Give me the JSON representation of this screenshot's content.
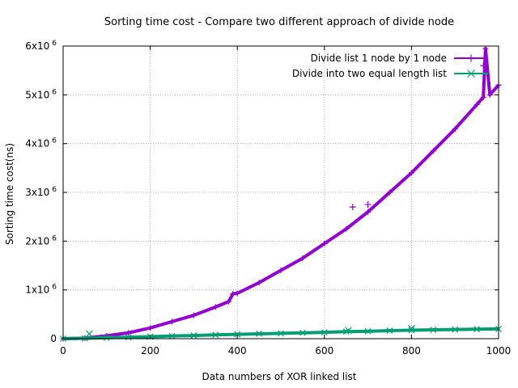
{
  "chart_data": {
    "type": "scatter",
    "title": "Sorting time cost - Compare two different approach of divide node",
    "xlabel": "Data numbers of XOR linked list",
    "ylabel": "Sorting time cost(ns)",
    "xlim": [
      0,
      1000
    ],
    "ylim": [
      0,
      6000000
    ],
    "xticks": [
      0,
      200,
      400,
      600,
      800,
      1000
    ],
    "xtick_labels": [
      "0",
      "200",
      "400",
      "600",
      "800",
      "1000"
    ],
    "yticks": [
      0,
      1000000,
      2000000,
      3000000,
      4000000,
      5000000,
      6000000
    ],
    "ytick_labels": [
      {
        "base": "0",
        "exp": ""
      },
      {
        "base": "1x10",
        "exp": "6"
      },
      {
        "base": "2x10",
        "exp": "6"
      },
      {
        "base": "3x10",
        "exp": "6"
      },
      {
        "base": "4x10",
        "exp": "6"
      },
      {
        "base": "5x10",
        "exp": "6"
      },
      {
        "base": "6x10",
        "exp": "6"
      }
    ],
    "grid": true,
    "legend_position": "top-right",
    "series": [
      {
        "name": "Divide list 1 node by 1 node",
        "color": "#9400d3",
        "marker": "plus",
        "x": [
          0,
          50,
          100,
          150,
          200,
          250,
          300,
          350,
          380,
          390,
          400,
          450,
          500,
          550,
          600,
          650,
          700,
          750,
          800,
          850,
          900,
          950,
          965,
          970,
          980,
          1000
        ],
        "y": [
          0,
          12000,
          60000,
          120000,
          220000,
          350000,
          480000,
          650000,
          760000,
          920000,
          930000,
          1150000,
          1400000,
          1650000,
          1950000,
          2250000,
          2600000,
          3000000,
          3400000,
          3850000,
          4300000,
          4800000,
          4950000,
          5950000,
          5000000,
          5200000
        ],
        "outliers": [
          [
            665,
            2700000
          ],
          [
            700,
            2750000
          ],
          [
            965,
            5600000
          ]
        ]
      },
      {
        "name": "Divide into two equal length list",
        "color": "#009e73",
        "marker": "cross",
        "x": [
          0,
          50,
          100,
          150,
          200,
          250,
          300,
          350,
          400,
          450,
          500,
          550,
          600,
          650,
          700,
          750,
          800,
          850,
          900,
          950,
          1000
        ],
        "y": [
          0,
          8000,
          20000,
          30000,
          42000,
          55000,
          65000,
          78000,
          90000,
          100000,
          110000,
          120000,
          130000,
          145000,
          152000,
          165000,
          175000,
          182000,
          188000,
          195000,
          200000
        ],
        "outliers": [
          [
            60,
            100000
          ],
          [
            655,
            170000
          ],
          [
            800,
            210000
          ]
        ]
      }
    ]
  }
}
